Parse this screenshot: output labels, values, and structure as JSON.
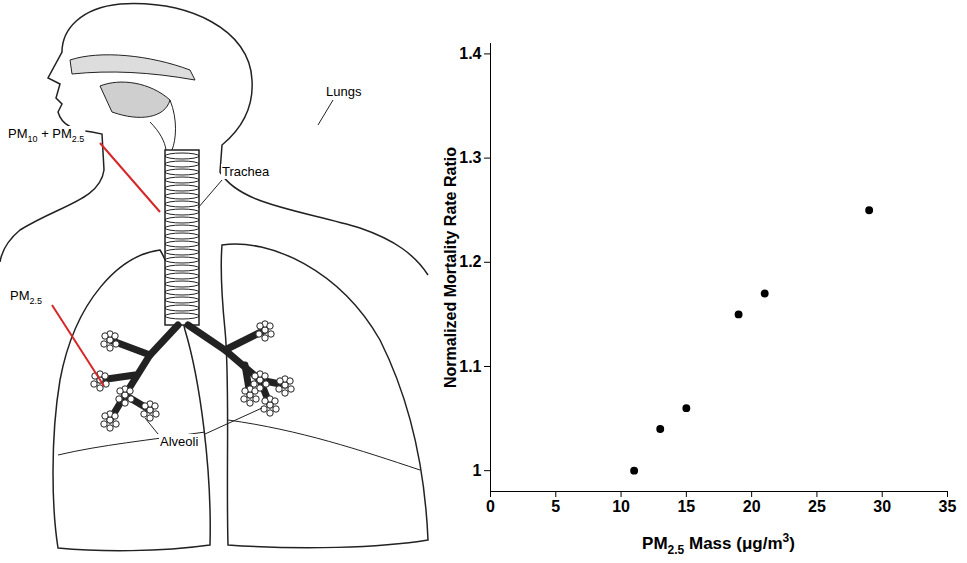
{
  "diagram": {
    "labels": [
      "PM10 + PM2.5",
      "Trachea",
      "Lungs",
      "PM2.5",
      "Alveoli"
    ]
  },
  "chart_data": {
    "type": "scatter",
    "xlabel": "PM2.5 Mass (μg/m3)",
    "ylabel": "Normalized Mortality Rate Ratio",
    "x": [
      11,
      13,
      15,
      19,
      21,
      29
    ],
    "values": [
      1.0,
      1.04,
      1.06,
      1.15,
      1.17,
      1.25
    ],
    "color": "#000000",
    "marker": "circle",
    "xlim": [
      0,
      35
    ],
    "xticks": [
      0,
      5,
      10,
      15,
      20,
      25,
      30,
      35
    ],
    "ylim": [
      0.98,
      1.41
    ],
    "yticks": [
      1,
      1.1,
      1.2,
      1.3,
      1.4
    ],
    "grid": false
  }
}
